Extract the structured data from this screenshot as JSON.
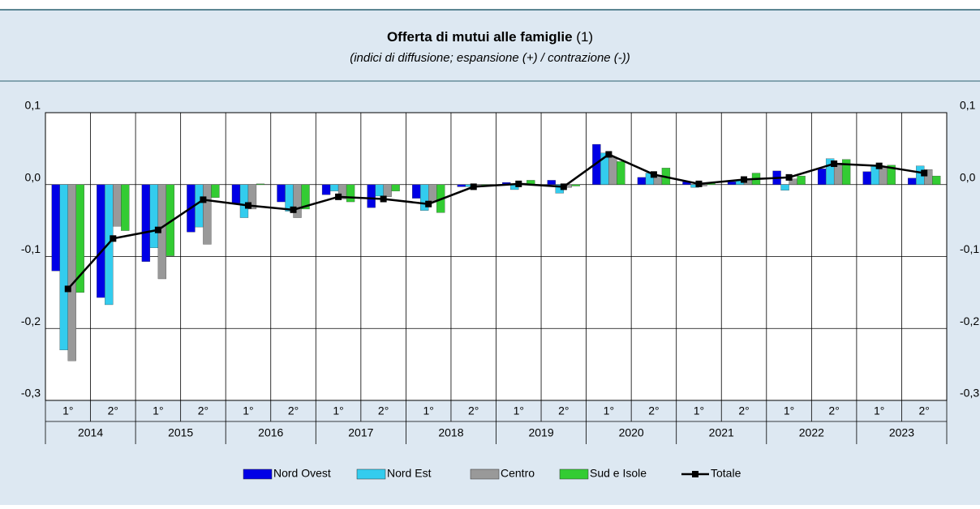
{
  "chart_data": {
    "type": "bar",
    "title": "Offerta di mutui alle famiglie",
    "title_note": "(1)",
    "subtitle": "(indici di diffusione; espansione (+) / contrazione (-))",
    "categories": [
      "1°",
      "2°",
      "1°",
      "2°",
      "1°",
      "2°",
      "1°",
      "2°",
      "1°",
      "2°",
      "1°",
      "2°",
      "1°",
      "2°",
      "1°",
      "2°",
      "1°",
      "2°",
      "1°",
      "2°"
    ],
    "years": [
      "2014",
      "2015",
      "2016",
      "2017",
      "2018",
      "2019",
      "2020",
      "2021",
      "2022",
      "2023"
    ],
    "series": [
      {
        "name": "Nord Ovest",
        "color": "#0000e6",
        "values": [
          -0.12,
          -0.157,
          -0.107,
          -0.066,
          -0.026,
          -0.024,
          -0.014,
          -0.032,
          -0.019,
          -0.003,
          0.003,
          0.006,
          0.056,
          0.01,
          0.004,
          0.004,
          0.019,
          0.022,
          0.018,
          0.009
        ]
      },
      {
        "name": "Nord Est",
        "color": "#33ccee",
        "values": [
          -0.23,
          -0.167,
          -0.088,
          -0.059,
          -0.046,
          -0.037,
          -0.009,
          -0.016,
          -0.036,
          -0.003,
          -0.007,
          -0.012,
          0.044,
          0.016,
          -0.004,
          0.006,
          -0.008,
          0.036,
          0.026,
          0.026
        ]
      },
      {
        "name": "Centro",
        "color": "#999999",
        "values": [
          -0.245,
          -0.058,
          -0.131,
          -0.083,
          -0.034,
          -0.046,
          -0.02,
          -0.017,
          -0.024,
          -0.002,
          0.002,
          -0.004,
          0.038,
          0.013,
          -0.002,
          0.008,
          0.008,
          0.03,
          0.024,
          0.021
        ]
      },
      {
        "name": "Sud e Isole",
        "color": "#33cc33",
        "values": [
          -0.15,
          -0.064,
          -0.099,
          -0.018,
          0.001,
          -0.034,
          -0.024,
          -0.009,
          -0.039,
          -0.002,
          0.006,
          -0.002,
          0.032,
          0.023,
          0.002,
          0.016,
          0.012,
          0.035,
          0.027,
          0.012
        ]
      },
      {
        "name": "Totale",
        "color": "#000000",
        "line": true,
        "values": [
          -0.145,
          -0.075,
          -0.063,
          -0.021,
          -0.029,
          -0.035,
          -0.017,
          -0.02,
          -0.027,
          -0.003,
          0.001,
          -0.003,
          0.042,
          0.014,
          0.001,
          0.007,
          0.01,
          0.029,
          0.026,
          0.016
        ]
      }
    ],
    "ylim": [
      -0.3,
      0.1
    ],
    "yticks": [
      {
        "value": -0.3,
        "label": "-0,3"
      },
      {
        "value": -0.2,
        "label": "-0,2"
      },
      {
        "value": -0.1,
        "label": "-0,1"
      },
      {
        "value": 0,
        "label": "0,0"
      },
      {
        "value": 0.1,
        "label": "0,1"
      }
    ],
    "grid": true
  }
}
